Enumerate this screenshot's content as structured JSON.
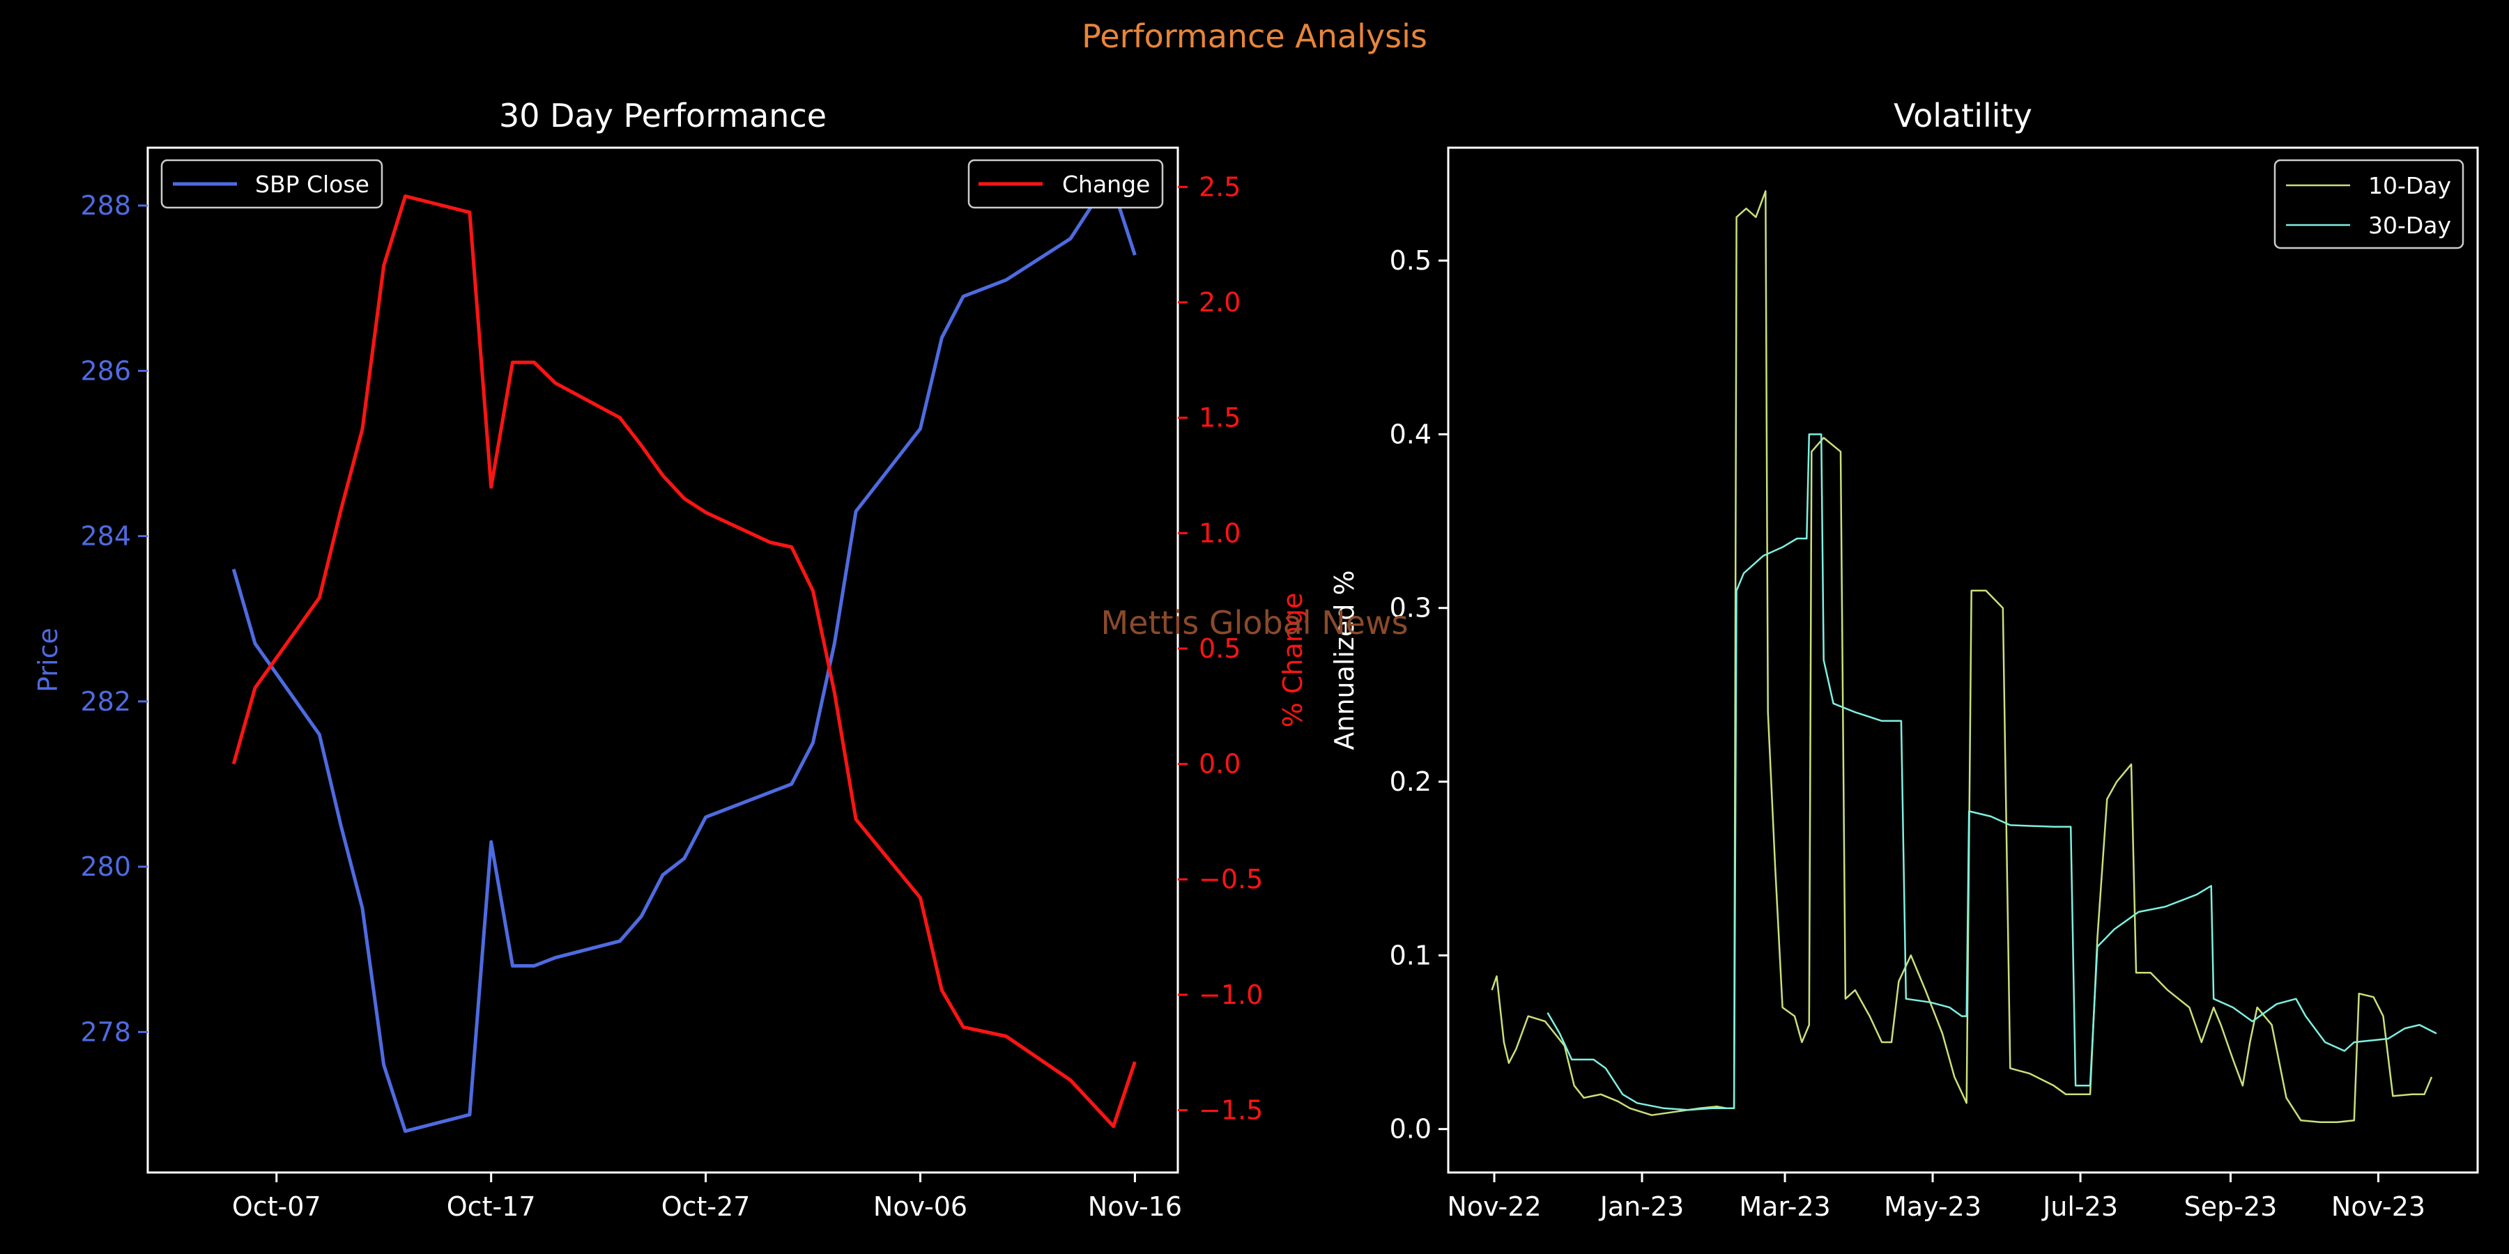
{
  "figure": {
    "suptitle": "Performance Analysis",
    "watermark": "Mettis Global News",
    "colors": {
      "suptitle": "#e8853a",
      "watermark": "#8a4a2a",
      "axes": "#ffffff",
      "background": "#000000"
    }
  },
  "chart_data": [
    {
      "type": "line",
      "title": "30 Day Performance",
      "xlabel": "",
      "ylabel": "Price",
      "ylabel_right": "% Change",
      "x_ticks": [
        "Oct-07",
        "Oct-17",
        "Oct-27",
        "Nov-06",
        "Nov-16"
      ],
      "y_ticks": [
        "278",
        "280",
        "282",
        "284",
        "286",
        "288"
      ],
      "y_right_ticks": [
        "−1.5",
        "−1.0",
        "−0.5",
        "0.0",
        "0.5",
        "1.0",
        "1.5",
        "2.0",
        "2.5"
      ],
      "xlim": [
        "2023-10-01",
        "2023-11-18"
      ],
      "ylim": [
        276.3,
        288.7
      ],
      "ylim_right": [
        -1.77,
        2.67
      ],
      "grid": false,
      "legend_left": "upper left",
      "legend_right": "upper right",
      "x": [
        "2023-10-05",
        "2023-10-06",
        "2023-10-09",
        "2023-10-10",
        "2023-10-11",
        "2023-10-12",
        "2023-10-13",
        "2023-10-16",
        "2023-10-17",
        "2023-10-18",
        "2023-10-19",
        "2023-10-20",
        "2023-10-23",
        "2023-10-24",
        "2023-10-25",
        "2023-10-26",
        "2023-10-27",
        "2023-10-30",
        "2023-10-31",
        "2023-11-01",
        "2023-11-02",
        "2023-11-03",
        "2023-11-06",
        "2023-11-07",
        "2023-11-08",
        "2023-11-10",
        "2023-11-13",
        "2023-11-14",
        "2023-11-15",
        "2023-11-16"
      ],
      "series": [
        {
          "name": "SBP Close",
          "axis": "left",
          "color": "#4e6be0",
          "values": [
            283.6,
            282.7,
            281.6,
            280.5,
            279.5,
            277.6,
            276.8,
            277.0,
            280.3,
            278.8,
            278.8,
            278.9,
            279.1,
            279.4,
            279.9,
            280.1,
            280.6,
            280.9,
            281.0,
            281.5,
            282.7,
            284.3,
            285.3,
            286.4,
            286.9,
            287.1,
            287.6,
            288.0,
            288.2,
            287.4
          ]
        },
        {
          "name": "Change",
          "axis": "right",
          "color": "#ff1414",
          "values": [
            0.0,
            0.33,
            0.72,
            1.1,
            1.45,
            2.16,
            2.46,
            2.39,
            1.2,
            1.74,
            1.74,
            1.65,
            1.5,
            1.38,
            1.25,
            1.15,
            1.09,
            0.96,
            0.94,
            0.75,
            0.31,
            -0.24,
            -0.58,
            -0.98,
            -1.14,
            -1.18,
            -1.37,
            -1.47,
            -1.57,
            -1.29
          ]
        }
      ]
    },
    {
      "type": "line",
      "title": "Volatility",
      "xlabel": "",
      "ylabel": "Annualized %",
      "x_ticks": [
        "Nov-22",
        "Jan-23",
        "Mar-23",
        "May-23",
        "Jul-23",
        "Sep-23",
        "Nov-23"
      ],
      "y_ticks": [
        "0.0",
        "0.1",
        "0.2",
        "0.3",
        "0.4",
        "0.5"
      ],
      "xlim": [
        "2022-10-13",
        "2023-12-12"
      ],
      "ylim": [
        -0.025,
        0.565
      ],
      "grid": false,
      "legend": "upper right",
      "series": [
        {
          "name": "10-Day",
          "color": "#c9e07a",
          "points": [
            [
              "2022-10-31",
              0.08
            ],
            [
              "2022-11-02",
              0.088
            ],
            [
              "2022-11-05",
              0.05
            ],
            [
              "2022-11-07",
              0.038
            ],
            [
              "2022-11-10",
              0.046
            ],
            [
              "2022-11-15",
              0.065
            ],
            [
              "2022-11-22",
              0.062
            ],
            [
              "2022-11-30",
              0.048
            ],
            [
              "2022-12-04",
              0.025
            ],
            [
              "2022-12-08",
              0.018
            ],
            [
              "2022-12-15",
              0.02
            ],
            [
              "2022-12-22",
              0.016
            ],
            [
              "2022-12-27",
              0.012
            ],
            [
              "2023-01-05",
              0.008
            ],
            [
              "2023-01-15",
              0.01
            ],
            [
              "2023-01-25",
              0.012
            ],
            [
              "2023-02-01",
              0.013
            ],
            [
              "2023-02-05",
              0.012
            ],
            [
              "2023-02-08",
              0.012
            ],
            [
              "2023-02-09",
              0.525
            ],
            [
              "2023-02-13",
              0.53
            ],
            [
              "2023-02-17",
              0.525
            ],
            [
              "2023-02-21",
              0.54
            ],
            [
              "2023-02-22",
              0.24
            ],
            [
              "2023-02-25",
              0.15
            ],
            [
              "2023-02-28",
              0.07
            ],
            [
              "2023-03-05",
              0.065
            ],
            [
              "2023-03-08",
              0.05
            ],
            [
              "2023-03-11",
              0.06
            ],
            [
              "2023-03-12",
              0.39
            ],
            [
              "2023-03-17",
              0.398
            ],
            [
              "2023-03-24",
              0.39
            ],
            [
              "2023-03-26",
              0.075
            ],
            [
              "2023-03-30",
              0.08
            ],
            [
              "2023-04-05",
              0.065
            ],
            [
              "2023-04-10",
              0.05
            ],
            [
              "2023-04-14",
              0.05
            ],
            [
              "2023-04-17",
              0.085
            ],
            [
              "2023-04-22",
              0.1
            ],
            [
              "2023-04-28",
              0.08
            ],
            [
              "2023-05-05",
              0.055
            ],
            [
              "2023-05-10",
              0.03
            ],
            [
              "2023-05-15",
              0.015
            ],
            [
              "2023-05-17",
              0.31
            ],
            [
              "2023-05-23",
              0.31
            ],
            [
              "2023-05-30",
              0.3
            ],
            [
              "2023-06-02",
              0.035
            ],
            [
              "2023-06-10",
              0.032
            ],
            [
              "2023-06-20",
              0.025
            ],
            [
              "2023-06-25",
              0.02
            ],
            [
              "2023-07-05",
              0.02
            ],
            [
              "2023-07-08",
              0.11
            ],
            [
              "2023-07-12",
              0.19
            ],
            [
              "2023-07-16",
              0.2
            ],
            [
              "2023-07-22",
              0.21
            ],
            [
              "2023-07-24",
              0.09
            ],
            [
              "2023-07-30",
              0.09
            ],
            [
              "2023-08-06",
              0.08
            ],
            [
              "2023-08-15",
              0.07
            ],
            [
              "2023-08-20",
              0.05
            ],
            [
              "2023-08-25",
              0.07
            ],
            [
              "2023-08-28",
              0.06
            ],
            [
              "2023-09-02",
              0.04
            ],
            [
              "2023-09-06",
              0.025
            ],
            [
              "2023-09-09",
              0.05
            ],
            [
              "2023-09-12",
              0.07
            ],
            [
              "2023-09-18",
              0.06
            ],
            [
              "2023-09-24",
              0.018
            ],
            [
              "2023-09-30",
              0.005
            ],
            [
              "2023-10-08",
              0.004
            ],
            [
              "2023-10-15",
              0.004
            ],
            [
              "2023-10-22",
              0.005
            ],
            [
              "2023-10-24",
              0.078
            ],
            [
              "2023-10-30",
              0.076
            ],
            [
              "2023-11-03",
              0.065
            ],
            [
              "2023-11-07",
              0.019
            ],
            [
              "2023-11-15",
              0.02
            ],
            [
              "2023-11-20",
              0.02
            ],
            [
              "2023-11-23",
              0.03
            ]
          ]
        },
        {
          "name": "30-Day",
          "color": "#7ef0e0",
          "points": [
            [
              "2022-11-23",
              0.067
            ],
            [
              "2022-11-28",
              0.055
            ],
            [
              "2022-12-03",
              0.04
            ],
            [
              "2022-12-12",
              0.04
            ],
            [
              "2022-12-17",
              0.035
            ],
            [
              "2022-12-24",
              0.02
            ],
            [
              "2022-12-30",
              0.015
            ],
            [
              "2023-01-10",
              0.012
            ],
            [
              "2023-01-20",
              0.011
            ],
            [
              "2023-01-30",
              0.012
            ],
            [
              "2023-02-07",
              0.012
            ],
            [
              "2023-02-08",
              0.012
            ],
            [
              "2023-02-09",
              0.31
            ],
            [
              "2023-02-12",
              0.32
            ],
            [
              "2023-02-20",
              0.33
            ],
            [
              "2023-02-28",
              0.335
            ],
            [
              "2023-03-06",
              0.34
            ],
            [
              "2023-03-10",
              0.34
            ],
            [
              "2023-03-11",
              0.4
            ],
            [
              "2023-03-16",
              0.4
            ],
            [
              "2023-03-17",
              0.27
            ],
            [
              "2023-03-21",
              0.245
            ],
            [
              "2023-03-30",
              0.24
            ],
            [
              "2023-04-10",
              0.235
            ],
            [
              "2023-04-18",
              0.235
            ],
            [
              "2023-04-20",
              0.075
            ],
            [
              "2023-04-30",
              0.073
            ],
            [
              "2023-05-08",
              0.07
            ],
            [
              "2023-05-13",
              0.065
            ],
            [
              "2023-05-15",
              0.065
            ],
            [
              "2023-05-16",
              0.183
            ],
            [
              "2023-05-25",
              0.18
            ],
            [
              "2023-06-02",
              0.175
            ],
            [
              "2023-06-20",
              0.174
            ],
            [
              "2023-06-27",
              0.174
            ],
            [
              "2023-06-29",
              0.025
            ],
            [
              "2023-07-05",
              0.025
            ],
            [
              "2023-07-08",
              0.105
            ],
            [
              "2023-07-15",
              0.115
            ],
            [
              "2023-07-25",
              0.125
            ],
            [
              "2023-08-05",
              0.128
            ],
            [
              "2023-08-18",
              0.135
            ],
            [
              "2023-08-24",
              0.14
            ],
            [
              "2023-08-25",
              0.075
            ],
            [
              "2023-09-02",
              0.07
            ],
            [
              "2023-09-10",
              0.062
            ],
            [
              "2023-09-20",
              0.072
            ],
            [
              "2023-09-28",
              0.075
            ],
            [
              "2023-10-02",
              0.065
            ],
            [
              "2023-10-10",
              0.05
            ],
            [
              "2023-10-18",
              0.045
            ],
            [
              "2023-10-22",
              0.05
            ],
            [
              "2023-11-05",
              0.052
            ],
            [
              "2023-11-12",
              0.058
            ],
            [
              "2023-11-18",
              0.06
            ],
            [
              "2023-11-25",
              0.055
            ]
          ]
        }
      ]
    }
  ]
}
